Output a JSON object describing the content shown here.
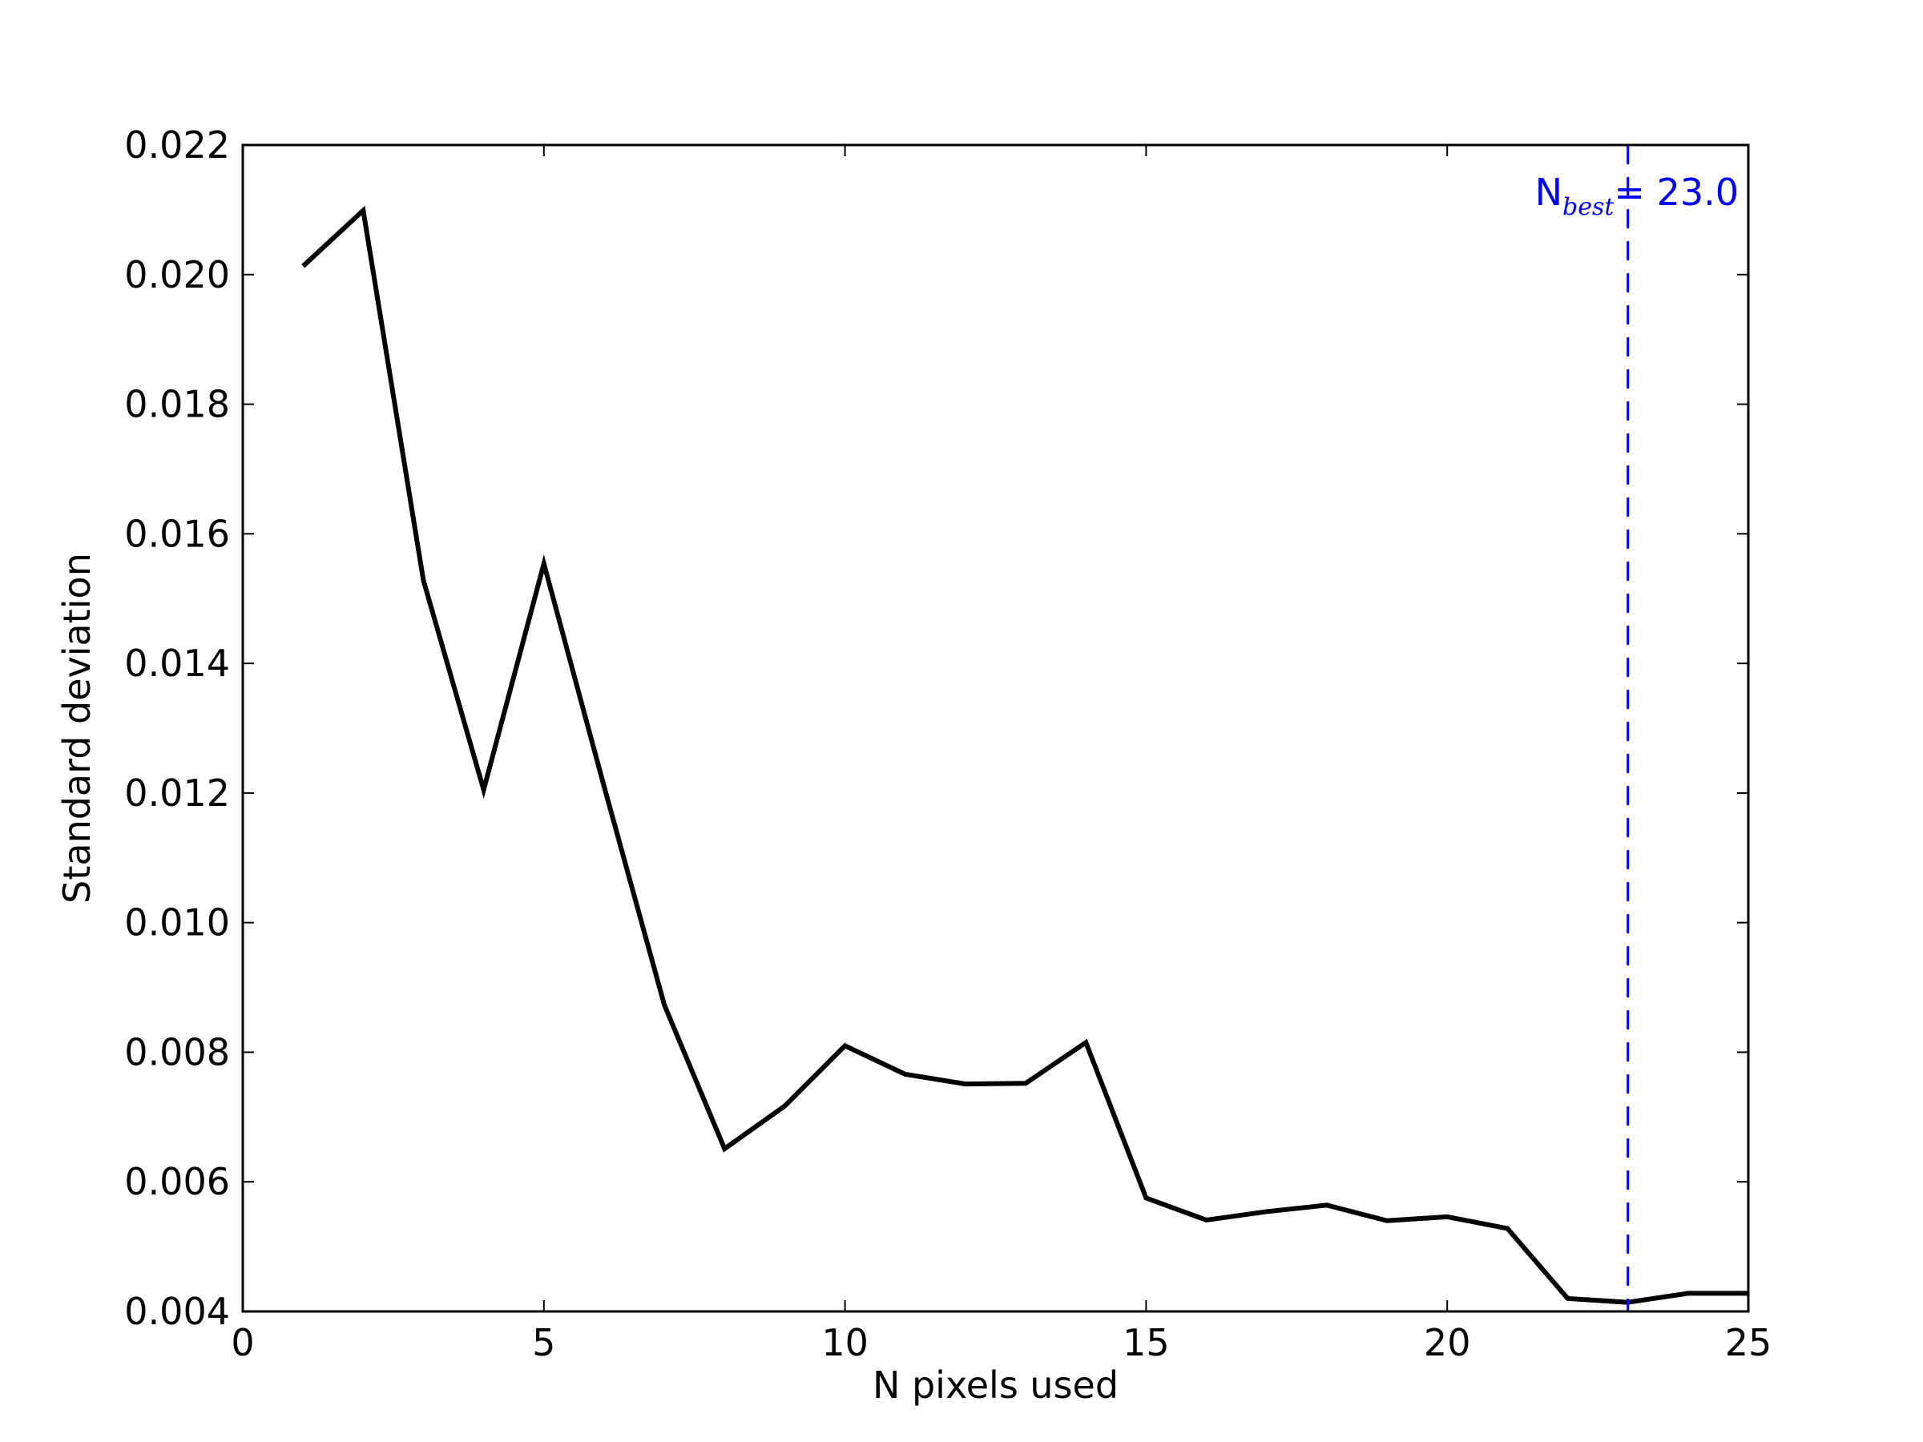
{
  "chart_data": {
    "type": "line",
    "xlabel": "N pixels used",
    "ylabel": "Standard deviation",
    "xlim": [
      0,
      25
    ],
    "ylim": [
      0.004,
      0.022
    ],
    "x_ticks": [
      0,
      5,
      10,
      15,
      20,
      25
    ],
    "y_ticks": [
      0.004,
      0.006,
      0.008,
      0.01,
      0.012,
      0.014,
      0.016,
      0.018,
      0.02,
      0.022
    ],
    "x_tick_labels": [
      "0",
      "5",
      "10",
      "15",
      "20",
      "25"
    ],
    "y_tick_labels": [
      "0.004",
      "0.006",
      "0.008",
      "0.010",
      "0.012",
      "0.014",
      "0.016",
      "0.018",
      "0.020",
      "0.022"
    ],
    "grid": false,
    "series": [
      {
        "color": "#000000",
        "x": [
          1,
          2,
          3,
          4,
          5,
          6,
          7,
          8,
          9,
          10,
          11,
          12,
          13,
          14,
          15,
          16,
          17,
          18,
          19,
          20,
          21,
          22,
          23,
          24,
          25
        ],
        "y": [
          0.02013,
          0.02099,
          0.01528,
          0.01205,
          0.01554,
          0.0121,
          0.00873,
          0.00651,
          0.00717,
          0.0081,
          0.00766,
          0.00751,
          0.00752,
          0.00815,
          0.00575,
          0.00541,
          0.00554,
          0.00564,
          0.0054,
          0.00546,
          0.00528,
          0.0042,
          0.00414,
          0.00428,
          0.00428
        ]
      }
    ],
    "vline": {
      "x": 23.0,
      "color": "#0000ff",
      "style": "dashed",
      "label_main": "N",
      "label_sub": "best",
      "label_value": "= 23.0"
    }
  }
}
